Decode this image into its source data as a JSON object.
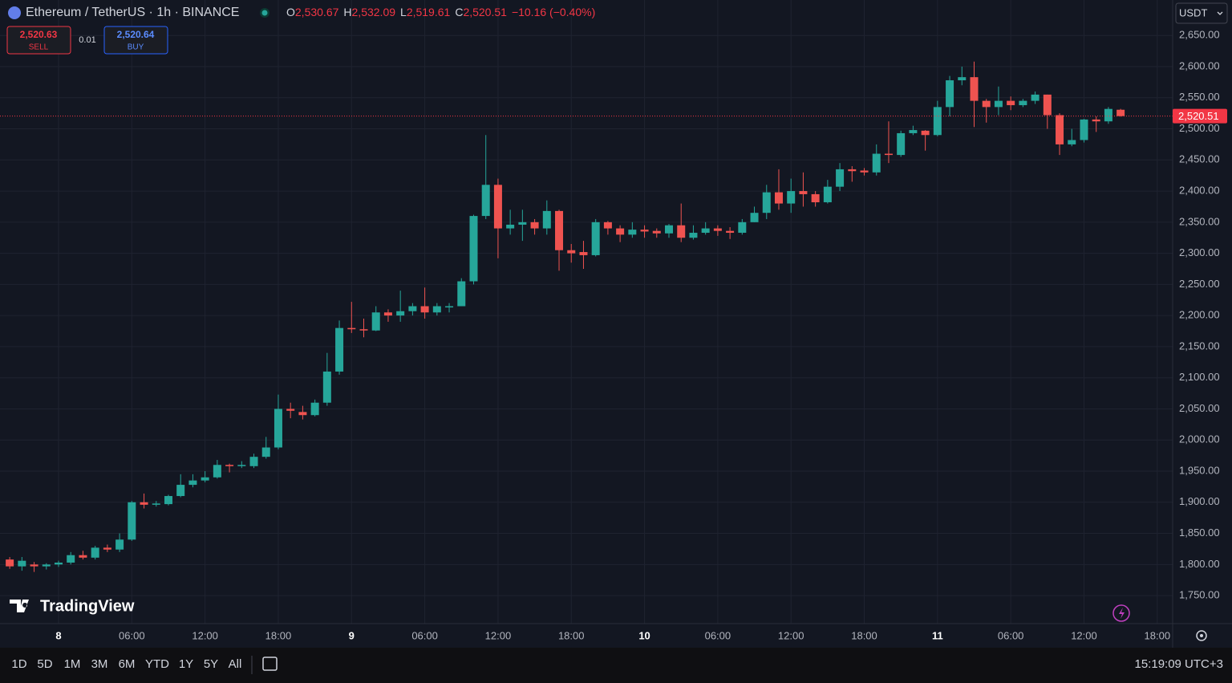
{
  "header": {
    "symbol": "Ethereum / TetherUS · 1h · BINANCE",
    "ohlc": [
      {
        "key": "O",
        "value": "2,530.67"
      },
      {
        "key": "H",
        "value": "2,532.09"
      },
      {
        "key": "L",
        "value": "2,519.61"
      },
      {
        "key": "C",
        "value": "2,520.51"
      }
    ],
    "change": "−10.16 (−0.40%)"
  },
  "trade": {
    "sell": {
      "price": "2,520.63",
      "label": "SELL"
    },
    "spread": "0.01",
    "buy": {
      "price": "2,520.64",
      "label": "BUY"
    }
  },
  "currency": "USDT",
  "brand": "TradingView",
  "timeframes": [
    "1D",
    "5D",
    "1M",
    "3M",
    "6M",
    "YTD",
    "1Y",
    "5Y",
    "All"
  ],
  "clock": "15:19:09 UTC+3",
  "chart_data": {
    "type": "candlestick",
    "up_color": "#26a69a",
    "down_color": "#ef5350",
    "grid": true,
    "x": [
      "7 20:00",
      "7 21:00",
      "7 22:00",
      "7 23:00",
      "8 00:00",
      "8 01:00",
      "8 02:00",
      "8 03:00",
      "8 04:00",
      "8 05:00",
      "8 06:00",
      "8 07:00",
      "8 08:00",
      "8 09:00",
      "8 10:00",
      "8 11:00",
      "8 12:00",
      "8 13:00",
      "8 14:00",
      "8 15:00",
      "8 16:00",
      "8 17:00",
      "8 18:00",
      "8 19:00",
      "8 20:00",
      "8 21:00",
      "8 22:00",
      "8 23:00",
      "9 00:00",
      "9 01:00",
      "9 02:00",
      "9 03:00",
      "9 04:00",
      "9 05:00",
      "9 06:00",
      "9 07:00",
      "9 08:00",
      "9 09:00",
      "9 10:00",
      "9 11:00",
      "9 12:00",
      "9 13:00",
      "9 14:00",
      "9 15:00",
      "9 16:00",
      "9 17:00",
      "9 18:00",
      "9 19:00",
      "9 20:00",
      "9 21:00",
      "9 22:00",
      "9 23:00",
      "10 00:00",
      "10 01:00",
      "10 02:00",
      "10 03:00",
      "10 04:00",
      "10 05:00",
      "10 06:00",
      "10 07:00",
      "10 08:00",
      "10 09:00",
      "10 10:00",
      "10 11:00",
      "10 12:00",
      "10 13:00",
      "10 14:00",
      "10 15:00",
      "10 16:00",
      "10 17:00",
      "10 18:00",
      "10 19:00",
      "10 20:00",
      "10 21:00",
      "10 22:00",
      "10 23:00",
      "11 00:00",
      "11 01:00",
      "11 02:00",
      "11 03:00",
      "11 04:00",
      "11 05:00",
      "11 06:00",
      "11 07:00",
      "11 08:00",
      "11 09:00",
      "11 10:00",
      "11 11:00",
      "11 12:00",
      "11 13:00",
      "11 14:00",
      "11 15:00"
    ],
    "open": [
      1808,
      1797,
      1800,
      1797,
      1800,
      1803,
      1815,
      1811,
      1827,
      1824,
      1840,
      1900,
      1896,
      1897,
      1910,
      1928,
      1935,
      1940,
      1960,
      1958,
      1958,
      1973,
      1988,
      2050,
      2045,
      2040,
      2060,
      2110,
      2180,
      2178,
      2176,
      2205,
      2200,
      2207,
      2215,
      2205,
      2213,
      2215,
      2255,
      2360,
      2410,
      2340,
      2346,
      2350,
      2340,
      2368,
      2305,
      2302,
      2297,
      2350,
      2340,
      2330,
      2338,
      2336,
      2332,
      2345,
      2325,
      2333,
      2340,
      2336,
      2333,
      2350,
      2365,
      2398,
      2380,
      2400,
      2395,
      2382,
      2407,
      2435,
      2433,
      2430,
      2460,
      2458,
      2493,
      2497,
      2490,
      2535,
      2578,
      2583,
      2545,
      2535,
      2545,
      2538,
      2545,
      2555,
      2522,
      2475,
      2482,
      2515,
      2512,
      2530.67
    ],
    "high": [
      1812,
      1812,
      1804,
      1802,
      1806,
      1820,
      1822,
      1830,
      1832,
      1850,
      1902,
      1914,
      1902,
      1912,
      1945,
      1945,
      1950,
      1968,
      1962,
      1966,
      1978,
      2005,
      2073,
      2060,
      2055,
      2065,
      2140,
      2192,
      2222,
      2195,
      2215,
      2210,
      2240,
      2220,
      2245,
      2220,
      2220,
      2260,
      2362,
      2490,
      2420,
      2370,
      2370,
      2355,
      2385,
      2370,
      2315,
      2320,
      2355,
      2352,
      2345,
      2350,
      2345,
      2340,
      2347,
      2380,
      2345,
      2350,
      2345,
      2342,
      2355,
      2375,
      2410,
      2435,
      2420,
      2430,
      2400,
      2418,
      2445,
      2440,
      2437,
      2475,
      2512,
      2497,
      2505,
      2498,
      2545,
      2585,
      2600,
      2608,
      2548,
      2568,
      2552,
      2548,
      2560,
      2555,
      2525,
      2500,
      2516,
      2520,
      2535,
      2532.09
    ],
    "low": [
      1793,
      1790,
      1788,
      1792,
      1796,
      1800,
      1808,
      1808,
      1820,
      1820,
      1838,
      1890,
      1893,
      1895,
      1908,
      1924,
      1932,
      1938,
      1948,
      1955,
      1955,
      1970,
      1985,
      2035,
      2033,
      2038,
      2055,
      2105,
      2172,
      2165,
      2175,
      2190,
      2190,
      2200,
      2195,
      2200,
      2205,
      2215,
      2250,
      2355,
      2292,
      2330,
      2320,
      2330,
      2330,
      2272,
      2285,
      2275,
      2295,
      2330,
      2318,
      2325,
      2325,
      2325,
      2325,
      2318,
      2322,
      2330,
      2328,
      2323,
      2330,
      2350,
      2355,
      2370,
      2365,
      2375,
      2375,
      2380,
      2400,
      2415,
      2425,
      2425,
      2445,
      2455,
      2490,
      2465,
      2488,
      2520,
      2570,
      2503,
      2510,
      2522,
      2530,
      2535,
      2540,
      2500,
      2458,
      2472,
      2478,
      2495,
      2508,
      2519.61
    ],
    "close": [
      1797,
      1806,
      1797,
      1800,
      1803,
      1815,
      1811,
      1827,
      1824,
      1840,
      1900,
      1896,
      1898,
      1910,
      1928,
      1935,
      1940,
      1960,
      1958,
      1960,
      1973,
      1988,
      2050,
      2047,
      2040,
      2060,
      2110,
      2180,
      2178,
      2176,
      2205,
      2200,
      2207,
      2215,
      2205,
      2215,
      2215,
      2255,
      2360,
      2410,
      2340,
      2346,
      2350,
      2340,
      2368,
      2305,
      2300,
      2297,
      2350,
      2340,
      2330,
      2338,
      2335,
      2332,
      2345,
      2325,
      2333,
      2340,
      2336,
      2333,
      2350,
      2365,
      2398,
      2380,
      2400,
      2395,
      2382,
      2407,
      2435,
      2432,
      2430,
      2460,
      2458,
      2493,
      2498,
      2490,
      2535,
      2578,
      2583,
      2545,
      2535,
      2545,
      2538,
      2545,
      2555,
      2522,
      2475,
      2482,
      2515,
      2512,
      2532,
      2520.51
    ],
    "last_price": {
      "value": 2520.51,
      "label": "2,520.51"
    },
    "last_price_color": "#f23645",
    "ylim": [
      1705,
      2707
    ],
    "yticks": [
      {
        "value": 1750,
        "label": "1,750.00"
      },
      {
        "value": 1800,
        "label": "1,800.00"
      },
      {
        "value": 1850,
        "label": "1,850.00"
      },
      {
        "value": 1900,
        "label": "1,900.00"
      },
      {
        "value": 1950,
        "label": "1,950.00"
      },
      {
        "value": 2000,
        "label": "2,000.00"
      },
      {
        "value": 2050,
        "label": "2,050.00"
      },
      {
        "value": 2100,
        "label": "2,100.00"
      },
      {
        "value": 2150,
        "label": "2,150.00"
      },
      {
        "value": 2200,
        "label": "2,200.00"
      },
      {
        "value": 2250,
        "label": "2,250.00"
      },
      {
        "value": 2300,
        "label": "2,300.00"
      },
      {
        "value": 2350,
        "label": "2,350.00"
      },
      {
        "value": 2400,
        "label": "2,400.00"
      },
      {
        "value": 2450,
        "label": "2,450.00"
      },
      {
        "value": 2500,
        "label": "2,500.00"
      },
      {
        "value": 2550,
        "label": "2,550.00"
      },
      {
        "value": 2600,
        "label": "2,600.00"
      },
      {
        "value": 2650,
        "label": "2,650.00"
      }
    ],
    "xticks": [
      {
        "value": "8 00:00",
        "label": "8"
      },
      {
        "value": "8 06:00",
        "label": "06:00"
      },
      {
        "value": "8 12:00",
        "label": "12:00"
      },
      {
        "value": "8 18:00",
        "label": "18:00"
      },
      {
        "value": "9 00:00",
        "label": "9"
      },
      {
        "value": "9 06:00",
        "label": "06:00"
      },
      {
        "value": "9 12:00",
        "label": "12:00"
      },
      {
        "value": "9 18:00",
        "label": "18:00"
      },
      {
        "value": "10 00:00",
        "label": "10"
      },
      {
        "value": "10 06:00",
        "label": "06:00"
      },
      {
        "value": "10 12:00",
        "label": "12:00"
      },
      {
        "value": "10 18:00",
        "label": "18:00"
      },
      {
        "value": "11 00:00",
        "label": "11"
      },
      {
        "value": "11 06:00",
        "label": "06:00"
      },
      {
        "value": "11 12:00",
        "label": "12:00"
      },
      {
        "value": "11 18:00",
        "label": "18:00"
      }
    ]
  }
}
